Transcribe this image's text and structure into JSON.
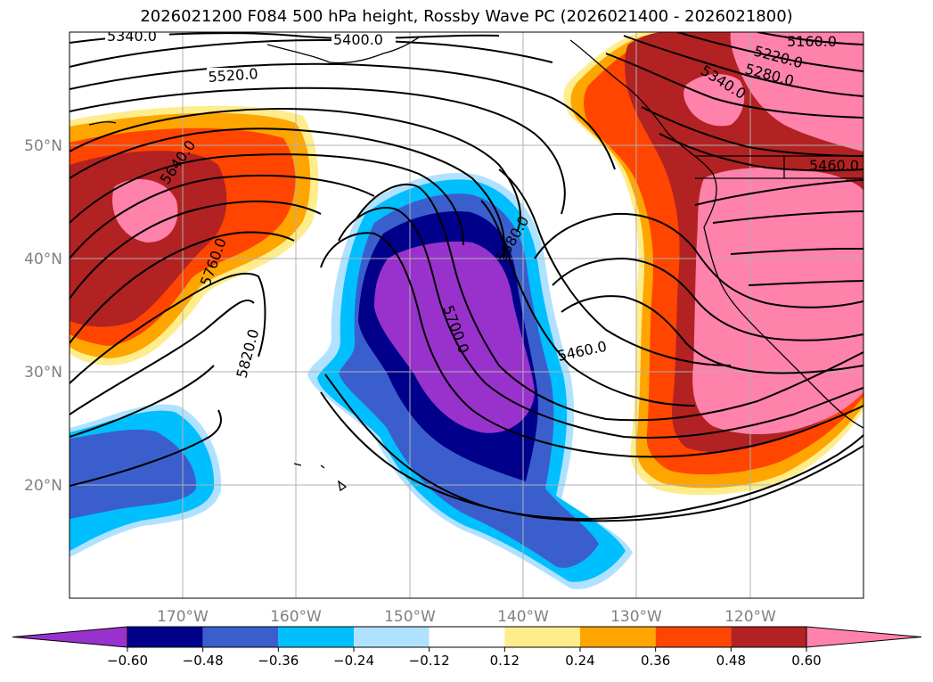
{
  "title": "2026021200 F084 500 hPa height, Rossby Wave PC (2026021400 - 2026021800)",
  "map": {
    "lon_range": [
      -180,
      -110
    ],
    "lat_range": [
      10,
      60
    ],
    "lon_ticks": [
      "170°W",
      "160°W",
      "150°W",
      "140°W",
      "130°W",
      "120°W"
    ],
    "lat_ticks": [
      "20°N",
      "30°N",
      "40°N",
      "50°N"
    ],
    "gridlines": true
  },
  "contour_labels": [
    "5340.0",
    "5400.0",
    "5520.0",
    "5640.0",
    "5760.0",
    "5820.0",
    "5580.0",
    "5700.0",
    "5460.0",
    "5160.0",
    "5220.0",
    "5280.0",
    "5340.0",
    "5460.0"
  ],
  "colorbar": {
    "ticks": [
      "−0.60",
      "−0.48",
      "−0.36",
      "−0.24",
      "−0.12",
      "0.12",
      "0.24",
      "0.36",
      "0.48",
      "0.60"
    ],
    "colors": [
      "#9932cc",
      "#00008b",
      "#3a5fcd",
      "#00bfff",
      "#b0e2ff",
      "#ffffff",
      "#ffec8b",
      "#ffa500",
      "#ff4500",
      "#b22222",
      "#ff82ab"
    ]
  }
}
